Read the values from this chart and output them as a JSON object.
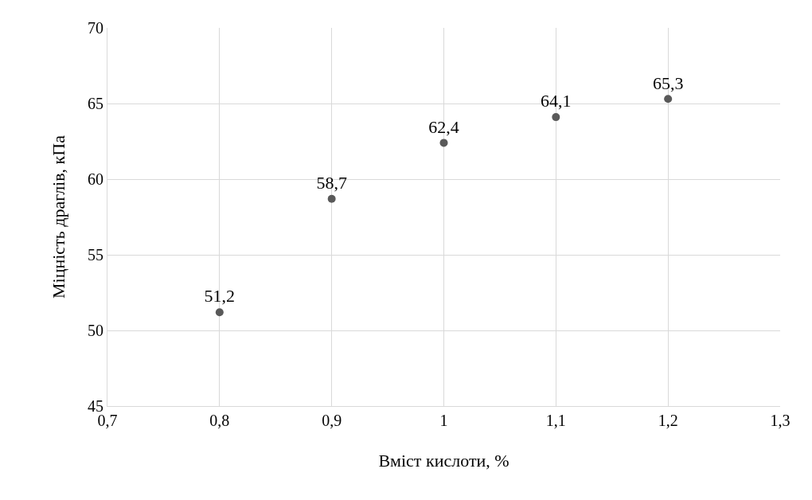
{
  "chart_data": {
    "type": "scatter",
    "xlabel": "Вміст кислоти, %",
    "ylabel": "Міцність драглів, кПа",
    "x": [
      0.8,
      0.9,
      1.0,
      1.1,
      1.2
    ],
    "values": [
      51.2,
      58.7,
      62.4,
      64.1,
      65.3
    ],
    "value_labels": [
      "51,2",
      "58,7",
      "62,4",
      "64,1",
      "65,3"
    ],
    "color": "#595959",
    "marker": "circle",
    "xlim": [
      0.7,
      1.3
    ],
    "xticks": [
      {
        "value": 0.7,
        "label": "0,7"
      },
      {
        "value": 0.8,
        "label": "0,8"
      },
      {
        "value": 0.9,
        "label": "0,9"
      },
      {
        "value": 1,
        "label": "1"
      },
      {
        "value": 1.1,
        "label": "1,1"
      },
      {
        "value": 1.2,
        "label": "1,2"
      },
      {
        "value": 1.3,
        "label": "1,3"
      }
    ],
    "ylim": [
      45,
      70
    ],
    "yticks": [
      45,
      50,
      55,
      60,
      65,
      70
    ],
    "grid": true
  }
}
